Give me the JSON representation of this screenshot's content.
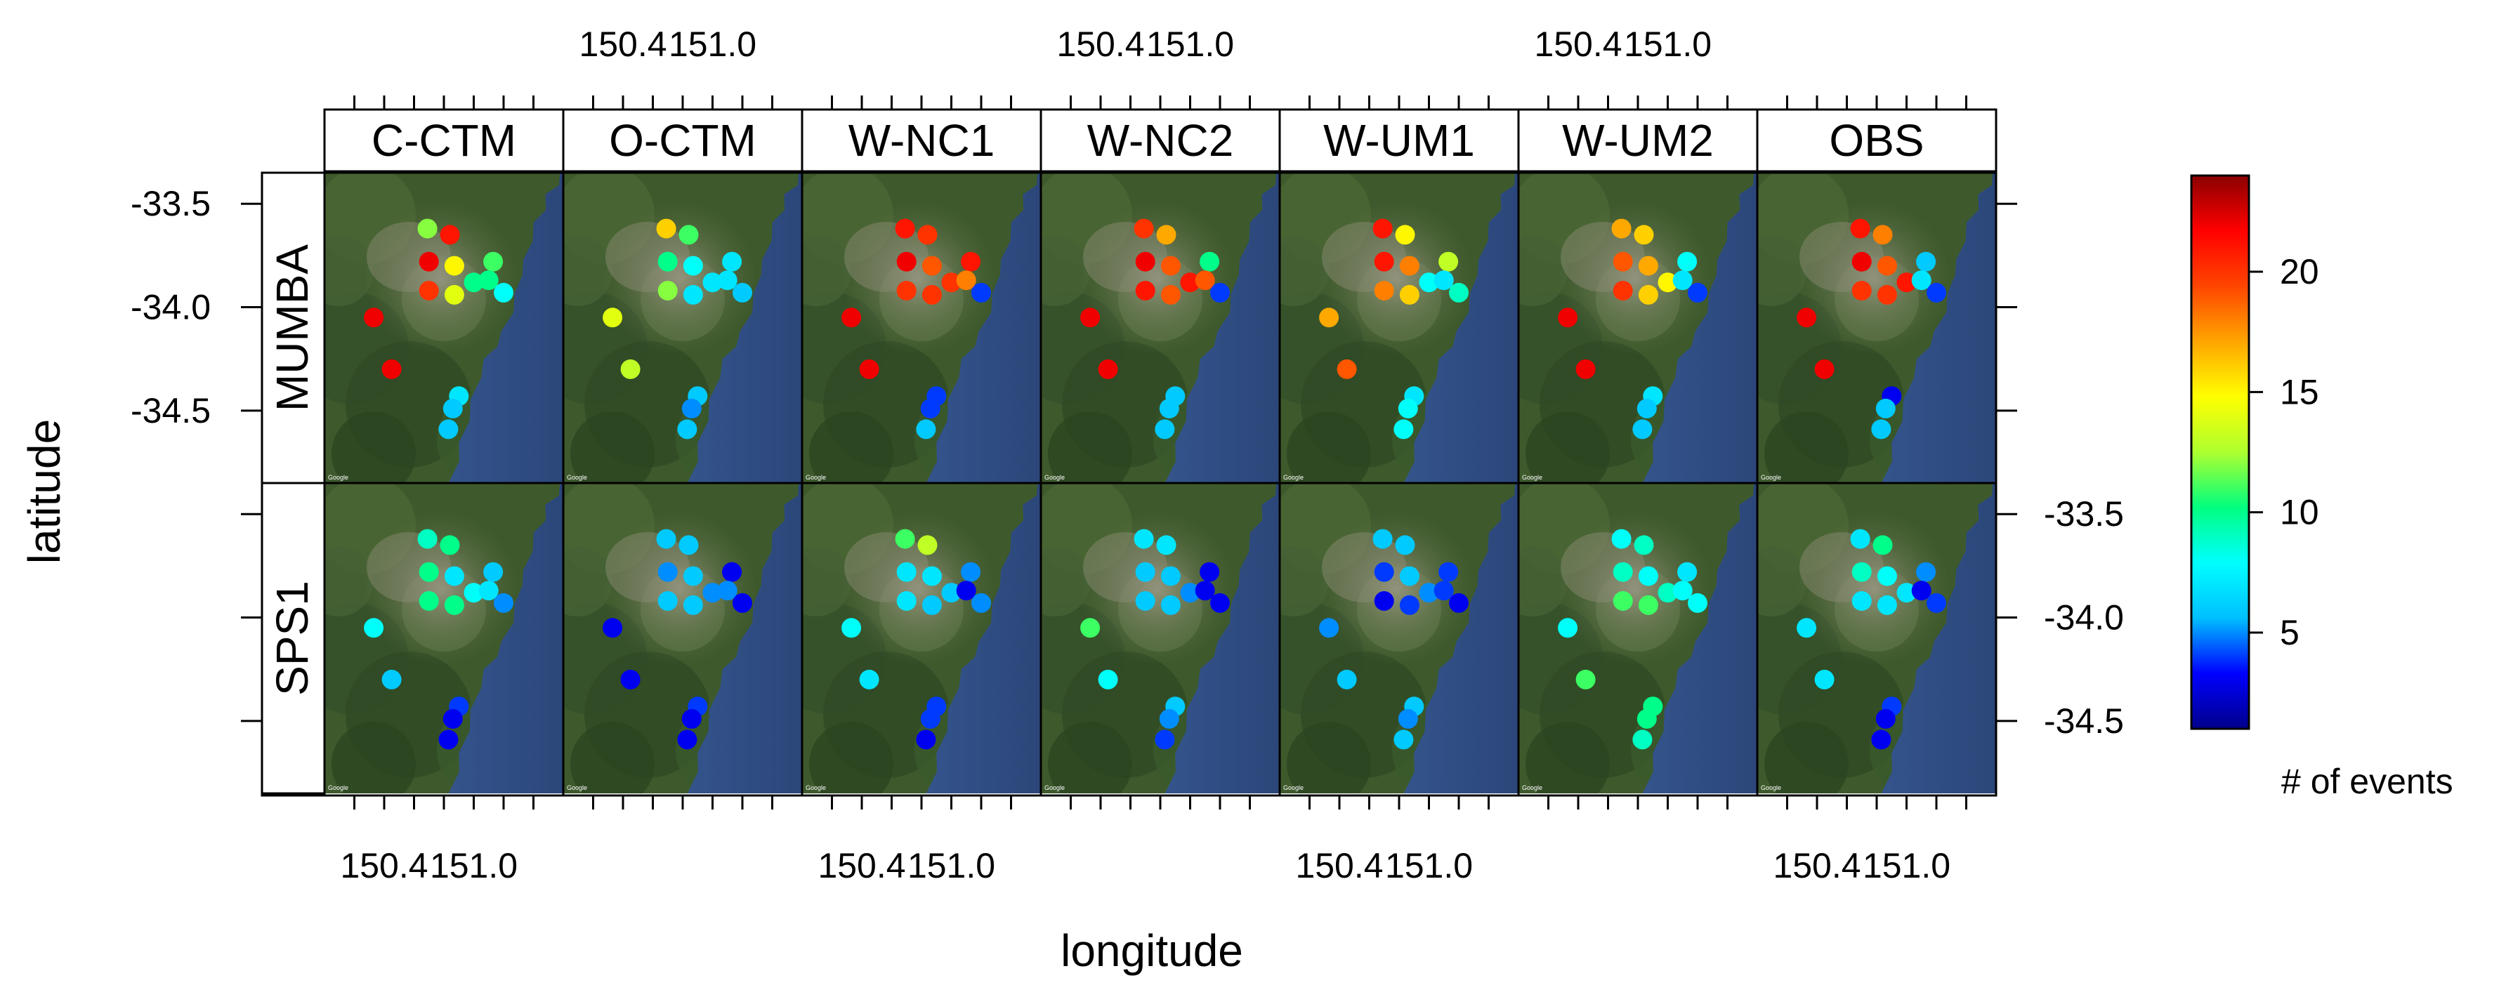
{
  "chart_data": {
    "type": "scatter",
    "title": "",
    "xlabel": "longitude",
    "ylabel": "latitude",
    "xlim": [
      150.0,
      151.6
    ],
    "ylim": [
      -34.85,
      -33.35
    ],
    "x_ticks": [
      150.4,
      151.0
    ],
    "x_tick_labels": [
      "150.4",
      "151.0"
    ],
    "y_ticks": [
      -33.5,
      -34.0,
      -34.5
    ],
    "y_tick_labels": [
      "-33.5",
      "-34.0",
      "-34.5"
    ],
    "columns": [
      "C-CTM",
      "O-CTM",
      "W-NC1",
      "W-NC2",
      "W-UM1",
      "W-UM2",
      "OBS"
    ],
    "rows": [
      "MUMBA",
      "SPS1"
    ],
    "colorbar": {
      "label": "# of events",
      "range": [
        1,
        24
      ],
      "ticks": [
        5,
        10,
        15,
        20
      ],
      "tick_labels": [
        "5",
        "10",
        "15",
        "20"
      ],
      "colormap": [
        "#00008b",
        "#0000ff",
        "#00bfff",
        "#00ffff",
        "#00ff7f",
        "#adff2f",
        "#ffff00",
        "#ffa500",
        "#ff4500",
        "#ff0000",
        "#8b0000"
      ]
    },
    "map_credit": "Google",
    "stations": [
      {
        "lon": 150.69,
        "lat": -33.62
      },
      {
        "lon": 150.84,
        "lat": -33.65
      },
      {
        "lon": 150.7,
        "lat": -33.78
      },
      {
        "lon": 150.87,
        "lat": -33.8
      },
      {
        "lon": 151.0,
        "lat": -33.88
      },
      {
        "lon": 151.13,
        "lat": -33.78
      },
      {
        "lon": 151.1,
        "lat": -33.87
      },
      {
        "lon": 150.7,
        "lat": -33.92
      },
      {
        "lon": 150.87,
        "lat": -33.94
      },
      {
        "lon": 151.2,
        "lat": -33.93
      },
      {
        "lon": 150.33,
        "lat": -34.05
      },
      {
        "lon": 150.45,
        "lat": -34.3
      },
      {
        "lon": 150.9,
        "lat": -34.43
      },
      {
        "lon": 150.86,
        "lat": -34.49
      },
      {
        "lon": 150.83,
        "lat": -34.59
      }
    ],
    "panels": {
      "MUMBA": {
        "C-CTM": [
          12,
          21,
          22,
          15,
          10,
          11,
          10,
          20,
          14,
          8,
          22,
          22,
          7,
          6,
          6
        ],
        "O-CTM": [
          16,
          11,
          10,
          8,
          7,
          7,
          7,
          12,
          7,
          6,
          14,
          13,
          6,
          5,
          6
        ],
        "W-NC1": [
          21,
          20,
          22,
          19,
          20,
          21,
          18,
          20,
          20,
          4,
          22,
          22,
          4,
          4,
          6
        ],
        "W-NC2": [
          20,
          17,
          22,
          19,
          21,
          10,
          19,
          21,
          19,
          4,
          22,
          22,
          6,
          6,
          6
        ],
        "W-UM1": [
          21,
          15,
          21,
          18,
          8,
          13,
          7,
          18,
          16,
          9,
          17,
          19,
          7,
          8,
          8
        ],
        "W-UM2": [
          17,
          16,
          19,
          17,
          15,
          8,
          7,
          20,
          16,
          4,
          22,
          22,
          7,
          6,
          6
        ],
        "OBS": [
          21,
          18,
          22,
          19,
          21,
          6,
          7,
          20,
          20,
          4,
          22,
          22,
          3,
          6,
          6
        ]
      },
      "SPS1": {
        "C-CTM": [
          9,
          10,
          10,
          7,
          8,
          6,
          7,
          10,
          10,
          5,
          8,
          6,
          4,
          3,
          3
        ],
        "O-CTM": [
          6,
          6,
          5,
          6,
          5,
          3,
          5,
          6,
          6,
          3,
          3,
          3,
          4,
          3,
          3
        ],
        "W-NC1": [
          11,
          13,
          7,
          7,
          6,
          5,
          3,
          7,
          6,
          5,
          8,
          7,
          4,
          4,
          3
        ],
        "W-NC2": [
          7,
          7,
          6,
          6,
          5,
          3,
          3,
          6,
          6,
          3,
          11,
          8,
          6,
          5,
          4
        ],
        "W-UM1": [
          6,
          6,
          4,
          6,
          5,
          4,
          4,
          3,
          4,
          3,
          5,
          6,
          6,
          5,
          6
        ],
        "W-UM2": [
          8,
          9,
          9,
          8,
          9,
          7,
          8,
          11,
          11,
          8,
          8,
          11,
          10,
          10,
          9
        ],
        "OBS": [
          7,
          10,
          9,
          8,
          7,
          5,
          3,
          7,
          7,
          4,
          7,
          7,
          4,
          3,
          3
        ]
      }
    }
  }
}
